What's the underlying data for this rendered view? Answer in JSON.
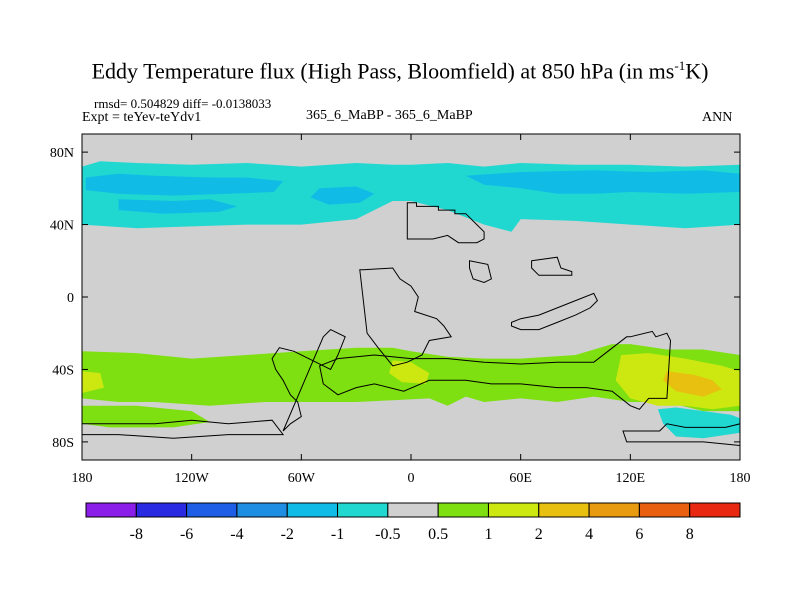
{
  "chart_data": {
    "type": "heatmap",
    "title_main": "Eddy Temperature flux (High Pass, Bloomfield) at 850 hPa (in ms",
    "title_sup": "-1",
    "title_tail": "K)",
    "rmsd_text": "rmsd= 0.504829 diff= -0.0138033",
    "expt_text": "Expt = teYev-teYdv1",
    "center_text": "365_6_MaBP - 365_6_MaBP",
    "right_text": "ANN",
    "x_ticks": [
      {
        "value": -180,
        "label": "180"
      },
      {
        "value": -120,
        "label": "120W"
      },
      {
        "value": -60,
        "label": "60W"
      },
      {
        "value": 0,
        "label": "0"
      },
      {
        "value": 60,
        "label": "60E"
      },
      {
        "value": 120,
        "label": "120E"
      },
      {
        "value": 180,
        "label": "180"
      }
    ],
    "y_ticks": [
      {
        "value": 80,
        "label": "80N"
      },
      {
        "value": 40,
        "label": "40N"
      },
      {
        "value": 0,
        "label": "0"
      },
      {
        "value": -40,
        "label": "40S"
      },
      {
        "value": -80,
        "label": "80S"
      }
    ],
    "xlim": [
      -180,
      180
    ],
    "ylim": [
      -90,
      90
    ],
    "colorbar": {
      "labels": [
        "-8",
        "-6",
        "-4",
        "-2",
        "-1",
        "-0.5",
        "0.5",
        "1",
        "2",
        "4",
        "6",
        "8"
      ],
      "colors": [
        "#8c1eea",
        "#2a2ae2",
        "#1e5ee6",
        "#1e8ee2",
        "#10bce6",
        "#20d8d0",
        "#d0d0d0",
        "#7ee010",
        "#cce810",
        "#e8c010",
        "#e89a10",
        "#e86010",
        "#e82810"
      ]
    },
    "background_color": "#d0d0d0",
    "regions": [
      {
        "name": "north-band-cyan",
        "level": "-1",
        "color": "#20d8d0",
        "lon": [
          -180,
          -170,
          -150,
          -120,
          -90,
          -60,
          -30,
          -10,
          0,
          20,
          40,
          60,
          90,
          120,
          150,
          180,
          180,
          150,
          120,
          90,
          60,
          55,
          40,
          20,
          0,
          -10,
          -30,
          -60,
          -90,
          -120,
          -150,
          -180
        ],
        "lat": [
          72,
          75,
          74,
          73,
          74,
          72,
          74,
          73,
          73,
          74,
          72,
          74,
          73,
          73,
          72,
          73,
          40,
          38,
          40,
          42,
          43,
          36,
          40,
          48,
          53,
          53,
          43,
          40,
          40,
          39,
          38,
          40
        ]
      },
      {
        "name": "north-band-blue-a",
        "level": "-2",
        "color": "#10bce6",
        "lon": [
          -178,
          -160,
          -140,
          -110,
          -90,
          -70,
          -75,
          -100,
          -130,
          -160,
          -178
        ],
        "lat": [
          66,
          68,
          67,
          66,
          66,
          64,
          58,
          57,
          56,
          57,
          59
        ]
      },
      {
        "name": "north-band-blue-b",
        "level": "-2",
        "color": "#10bce6",
        "lon": [
          -160,
          -130,
          -110,
          -95,
          -105,
          -135,
          -160
        ],
        "lat": [
          54,
          53,
          54,
          50,
          47,
          46,
          48
        ]
      },
      {
        "name": "north-band-blue-c",
        "level": "-2",
        "color": "#10bce6",
        "lon": [
          -50,
          -30,
          -20,
          -28,
          -45,
          -55
        ],
        "lat": [
          60,
          61,
          57,
          52,
          51,
          55
        ]
      },
      {
        "name": "north-band-blue-d",
        "level": "-2",
        "color": "#10bce6",
        "lon": [
          30,
          60,
          100,
          130,
          160,
          180,
          180,
          150,
          120,
          100,
          80,
          60,
          40
        ],
        "lat": [
          67,
          69,
          70,
          69,
          70,
          68,
          58,
          57,
          58,
          57,
          57,
          60,
          62
        ]
      },
      {
        "name": "south-band-green",
        "level": "1",
        "color": "#7ee010",
        "lon": [
          -180,
          -150,
          -120,
          -90,
          -60,
          -30,
          -10,
          0,
          20,
          40,
          60,
          90,
          110,
          120,
          140,
          160,
          180,
          180,
          160,
          140,
          120,
          100,
          80,
          60,
          40,
          30,
          20,
          10,
          -10,
          -30,
          -50,
          -80,
          -110,
          -140,
          -160,
          -180
        ],
        "lat": [
          -30,
          -31,
          -34,
          -32,
          -30,
          -28,
          -28,
          -30,
          -33,
          -34,
          -34,
          -32,
          -26,
          -26,
          -29,
          -29,
          -32,
          -63,
          -63,
          -58,
          -58,
          -55,
          -58,
          -56,
          -58,
          -55,
          -60,
          -56,
          -57,
          -58,
          -58,
          -58,
          -60,
          -58,
          -58,
          -56
        ]
      },
      {
        "name": "south-band-yellow-a",
        "level": "2",
        "color": "#cce810",
        "lon": [
          -180,
          -170,
          -168,
          -180
        ],
        "lat": [
          -41,
          -42,
          -50,
          -53
        ]
      },
      {
        "name": "south-band-yellow-b",
        "level": "2",
        "color": "#cce810",
        "lon": [
          -10,
          0,
          10,
          8,
          -5,
          -12
        ],
        "lat": [
          -35,
          -36,
          -42,
          -48,
          -47,
          -42
        ]
      },
      {
        "name": "south-band-yellow-c",
        "level": "2",
        "color": "#cce810",
        "lon": [
          115,
          130,
          150,
          170,
          180,
          180,
          165,
          150,
          135,
          120,
          112
        ],
        "lat": [
          -32,
          -31,
          -34,
          -38,
          -41,
          -60,
          -62,
          -60,
          -60,
          -56,
          -46
        ]
      },
      {
        "name": "south-band-orange",
        "level": "4",
        "color": "#e8c010",
        "lon": [
          140,
          155,
          165,
          170,
          160,
          145,
          138
        ],
        "lat": [
          -41,
          -43,
          -46,
          -51,
          -55,
          -52,
          -46
        ]
      },
      {
        "name": "antarctic-cyan",
        "level": "-1",
        "color": "#20d8d0",
        "lon": [
          135,
          145,
          160,
          175,
          180,
          180,
          160,
          145,
          138
        ],
        "lat": [
          -62,
          -61,
          -63,
          -65,
          -67,
          -75,
          -78,
          -77,
          -70
        ]
      },
      {
        "name": "south-band-green-b",
        "level": "1",
        "color": "#7ee010",
        "lon": [
          -180,
          -150,
          -120,
          -110,
          -130,
          -165,
          -180
        ],
        "lat": [
          -60,
          -60,
          -63,
          -69,
          -72,
          -72,
          -70
        ]
      }
    ],
    "coastlines": [
      {
        "name": "continent-north",
        "lon": [
          -2,
          3,
          3,
          15,
          15,
          24,
          24,
          30,
          36,
          40,
          40,
          36,
          26,
          20,
          12,
          8,
          -2
        ],
        "lat": [
          52,
          52,
          50,
          50,
          48,
          48,
          46,
          46,
          40,
          36,
          32,
          30,
          30,
          34,
          32,
          32,
          32
        ]
      },
      {
        "name": "continent-central",
        "lon": [
          -28,
          -26,
          -10,
          -6,
          0,
          4,
          2,
          14,
          18,
          22,
          10,
          6,
          -2,
          -10,
          -18,
          -24
        ],
        "lat": [
          15,
          15,
          16,
          10,
          6,
          0,
          -8,
          -12,
          -16,
          -22,
          -24,
          -32,
          -36,
          -38,
          -28,
          -20
        ]
      },
      {
        "name": "island-chain-east",
        "lon": [
          55,
          60,
          70,
          80,
          90,
          100,
          102,
          98,
          90,
          80,
          70,
          60,
          55
        ],
        "lat": [
          -14,
          -12,
          -10,
          -6,
          -2,
          2,
          -2,
          -6,
          -10,
          -14,
          -18,
          -18,
          -16
        ]
      },
      {
        "name": "continent-south",
        "lon": [
          -50,
          -40,
          -20,
          0,
          20,
          40,
          60,
          80,
          100,
          118,
          120,
          132,
          134,
          140,
          142,
          140,
          130,
          125,
          120,
          110,
          96,
          80,
          60,
          44,
          30,
          10,
          -4,
          -20,
          -30,
          -40,
          -48
        ],
        "lat": [
          -38,
          -34,
          -32,
          -34,
          -34,
          -36,
          -37,
          -36,
          -36,
          -22,
          -22,
          -19,
          -22,
          -20,
          -24,
          -56,
          -56,
          -62,
          -60,
          -52,
          -50,
          -50,
          -48,
          -48,
          -46,
          -46,
          -52,
          -48,
          -50,
          -54,
          -48
        ]
      },
      {
        "name": "continent-west-arm",
        "lon": [
          -48,
          -44,
          -36,
          -40,
          -44,
          -56,
          -64,
          -72,
          -76,
          -74,
          -70,
          -66,
          -62,
          -60,
          -66,
          -70
        ],
        "lat": [
          -22,
          -18,
          -22,
          -32,
          -40,
          -34,
          -30,
          -28,
          -34,
          -40,
          -46,
          -54,
          -58,
          -66,
          -70,
          -74
        ]
      },
      {
        "name": "antarctic-west",
        "lon": [
          -180,
          -140,
          -120,
          -100,
          -76,
          -70,
          -100,
          -130,
          -160,
          -180
        ],
        "lat": [
          -70,
          -70,
          -68,
          -70,
          -68,
          -76,
          -76,
          -78,
          -76,
          -76
        ]
      },
      {
        "name": "antarctic-east",
        "lon": [
          116,
          136,
          140,
          150,
          172,
          180,
          180,
          160,
          140,
          118
        ],
        "lat": [
          -74,
          -74,
          -70,
          -72,
          -72,
          -70,
          -82,
          -80,
          -80,
          -80
        ]
      },
      {
        "name": "island-north-small",
        "lon": [
          32,
          42,
          44,
          40,
          34,
          32
        ],
        "lat": [
          20,
          18,
          10,
          8,
          10,
          16
        ],
        "stroke_only": true
      },
      {
        "name": "island-east-north",
        "lon": [
          66,
          80,
          82,
          88,
          88,
          70,
          66
        ],
        "lat": [
          20,
          22,
          16,
          14,
          12,
          12,
          16
        ],
        "stroke_only": true
      }
    ]
  }
}
